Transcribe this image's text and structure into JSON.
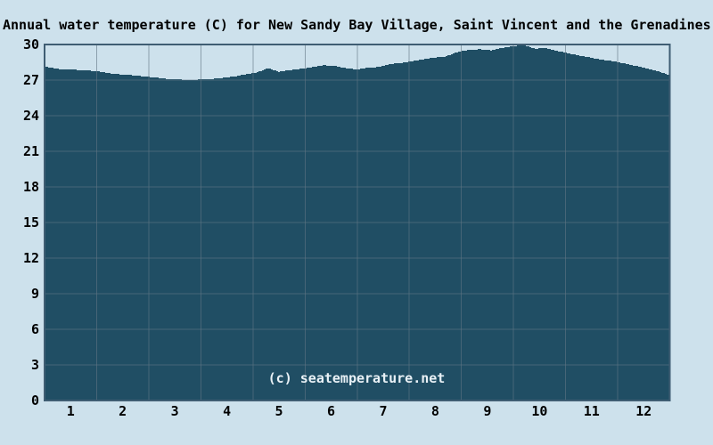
{
  "watermark": {
    "text": "(c) seatemperature.net"
  },
  "colors": {
    "background": "#cde1ec",
    "area_fill": "#204e64",
    "grid": "rgba(96,117,131,0.6)",
    "plot_border": "#3f5d73",
    "title_text": "#000000",
    "axis_text": "#000000",
    "watermark_text": "#e9f1f6"
  },
  "chart_data": {
    "type": "area",
    "title": "Annual water temperature (C) for New Sandy Bay Village, Saint Vincent and the Grenadines",
    "xlabel": "",
    "ylabel": "",
    "x_ticks": [
      "1",
      "2",
      "3",
      "4",
      "5",
      "6",
      "7",
      "8",
      "9",
      "10",
      "11",
      "12"
    ],
    "y_ticks": [
      "30",
      "27",
      "24",
      "21",
      "18",
      "15",
      "12",
      "9",
      "6",
      "3",
      "0"
    ],
    "ylim": [
      0,
      30
    ],
    "y_tick_step": 3,
    "xlim_months": [
      1,
      13
    ],
    "grid": true,
    "legend": false,
    "series": [
      {
        "name": "Water temperature (C)",
        "x_spacing": "57 points evenly spaced Jan 1 through Dec 31",
        "values": [
          28.15,
          27.95,
          27.9,
          27.85,
          27.8,
          27.7,
          27.55,
          27.45,
          27.4,
          27.3,
          27.2,
          27.1,
          27.05,
          27.0,
          27.05,
          27.1,
          27.2,
          27.3,
          27.5,
          27.65,
          28.0,
          27.7,
          27.85,
          27.95,
          28.1,
          28.25,
          28.2,
          28.0,
          27.9,
          28.05,
          28.1,
          28.35,
          28.45,
          28.6,
          28.75,
          28.9,
          29.0,
          29.35,
          29.55,
          29.6,
          29.5,
          29.7,
          29.85,
          29.95,
          29.65,
          29.7,
          29.45,
          29.25,
          29.05,
          28.9,
          28.7,
          28.6,
          28.4,
          28.2,
          28.0,
          27.75,
          27.45
        ]
      }
    ]
  }
}
